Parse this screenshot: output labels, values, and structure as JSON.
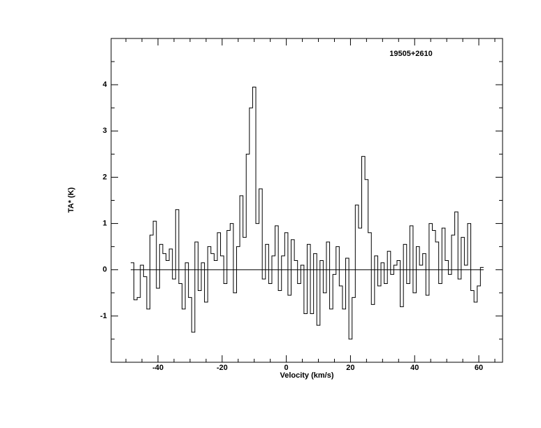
{
  "chart_data": {
    "type": "step-line",
    "title": "19505+2610",
    "xlabel": "Velocity (km/s)",
    "ylabel": "TA* (K)",
    "xlim": [
      -54.6,
      67.4
    ],
    "ylim": [
      -2,
      5
    ],
    "xticks": [
      -40,
      -20,
      0,
      20,
      40,
      60
    ],
    "yticks": [
      -1,
      0,
      1,
      2,
      3,
      4
    ],
    "xminor": [
      -50,
      -45,
      -35,
      -30,
      -25,
      -15,
      -10,
      -5,
      5,
      10,
      15,
      25,
      30,
      35,
      45,
      50,
      55,
      65
    ],
    "yminor": [
      -1.5,
      -0.5,
      0.5,
      1.5,
      2.5,
      3.5,
      4.5
    ],
    "baseline": 0,
    "color": "#000000",
    "x": [
      -48,
      -47,
      -46,
      -45,
      -44,
      -43,
      -42,
      -41,
      -40,
      -39,
      -38,
      -37,
      -36,
      -35,
      -34,
      -33,
      -32,
      -31,
      -30,
      -29,
      -28,
      -27,
      -26,
      -25,
      -24,
      -23,
      -22,
      -21,
      -20,
      -19,
      -18,
      -17,
      -16,
      -15,
      -14,
      -13,
      -12,
      -11,
      -10,
      -9,
      -8,
      -7,
      -6,
      -5,
      -4,
      -3,
      -2,
      -1,
      0,
      1,
      2,
      3,
      4,
      5,
      6,
      7,
      8,
      9,
      10,
      11,
      12,
      13,
      14,
      15,
      16,
      17,
      18,
      19,
      20,
      21,
      22,
      23,
      24,
      25,
      26,
      27,
      28,
      29,
      30,
      31,
      32,
      33,
      34,
      35,
      36,
      37,
      38,
      39,
      40,
      41,
      42,
      43,
      44,
      45,
      46,
      47,
      48,
      49,
      50,
      51,
      52,
      53,
      54,
      55,
      56,
      57,
      58,
      59,
      60,
      61
    ],
    "values": [
      0.15,
      -0.65,
      -0.6,
      0.1,
      -0.15,
      -0.85,
      0.75,
      1.05,
      -0.4,
      0.55,
      0.35,
      0.2,
      0.45,
      -0.2,
      1.3,
      -0.3,
      -0.85,
      0.15,
      -0.6,
      -1.35,
      0.6,
      -0.45,
      0.15,
      -0.7,
      0.5,
      0.35,
      0.2,
      0.8,
      0.3,
      -0.3,
      0.85,
      1.0,
      -0.5,
      0.5,
      1.6,
      0.7,
      2.5,
      3.5,
      3.95,
      1.0,
      1.75,
      -0.2,
      0.55,
      -0.3,
      0.3,
      0.95,
      -0.45,
      0.3,
      0.8,
      -0.55,
      0.65,
      0.2,
      -0.3,
      0.1,
      -0.95,
      0.55,
      -0.95,
      0.35,
      -1.2,
      0.2,
      -0.5,
      0.6,
      -0.85,
      -0.1,
      0.5,
      -0.35,
      -0.85,
      0.25,
      -1.5,
      -0.6,
      1.4,
      0.9,
      2.45,
      1.95,
      0.8,
      -0.75,
      0.3,
      -0.35,
      0.15,
      -0.3,
      0.4,
      -0.1,
      0.1,
      0.2,
      -0.8,
      0.55,
      -0.3,
      0.95,
      -0.5,
      0.5,
      0.1,
      0.35,
      -0.55,
      1.0,
      0.85,
      0.6,
      -0.3,
      0.9,
      0.2,
      -0.1,
      0.75,
      1.25,
      -0.2,
      0.7,
      0.1,
      1.0,
      -0.45,
      -0.7,
      -0.35,
      0.05
    ]
  }
}
